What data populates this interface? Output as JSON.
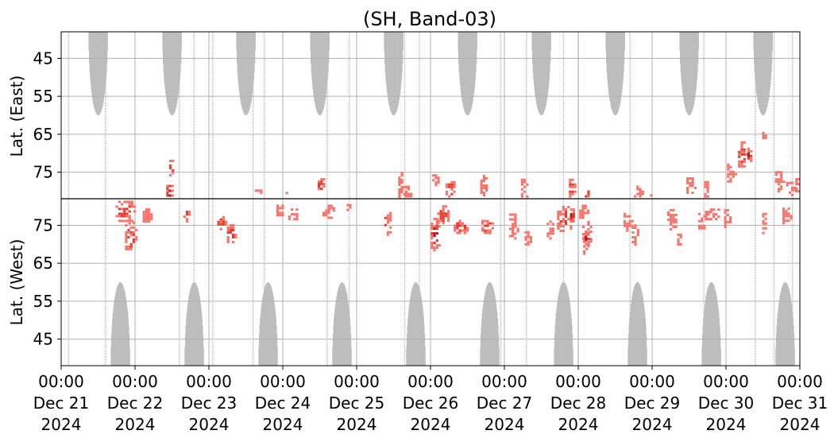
{
  "chart_data": {
    "type": "heatmap",
    "title": "(SH, Band-03)",
    "ylabel_east": "Lat. (East)",
    "ylabel_west": "Lat. (West)",
    "x_range": [
      "2024-12-21T00:00",
      "2024-12-31T00:00"
    ],
    "x_ticks": [
      {
        "time": "00:00",
        "date": "Dec 21",
        "year": "2024"
      },
      {
        "time": "00:00",
        "date": "Dec 22",
        "year": "2024"
      },
      {
        "time": "00:00",
        "date": "Dec 23",
        "year": "2024"
      },
      {
        "time": "00:00",
        "date": "Dec 24",
        "year": "2024"
      },
      {
        "time": "00:00",
        "date": "Dec 25",
        "year": "2024"
      },
      {
        "time": "00:00",
        "date": "Dec 26",
        "year": "2024"
      },
      {
        "time": "00:00",
        "date": "Dec 27",
        "year": "2024"
      },
      {
        "time": "00:00",
        "date": "Dec 28",
        "year": "2024"
      },
      {
        "time": "00:00",
        "date": "Dec 29",
        "year": "2024"
      },
      {
        "time": "00:00",
        "date": "Dec 30",
        "year": "2024"
      },
      {
        "time": "00:00",
        "date": "Dec 31",
        "year": "2024"
      }
    ],
    "y_ticks_east": [
      "45",
      "55",
      "65",
      "75"
    ],
    "y_ticks_west": [
      "75",
      "65",
      "55",
      "45"
    ],
    "east_lat_range": [
      38,
      82
    ],
    "west_lat_range": [
      82,
      38
    ],
    "grid": true,
    "colors": {
      "no_coverage": "#bdbdbd",
      "low": "#f8736a",
      "mid": "#e63c30",
      "high": "#b5161b",
      "divider": "#000000",
      "grid": "#b0b0b0"
    },
    "no_coverage_peak_lat": 60,
    "no_coverage_east_centers_day": [
      0.5,
      1.5,
      2.5,
      3.5,
      4.5,
      5.5,
      6.5,
      7.5,
      8.5,
      9.5
    ],
    "no_coverage_west_centers_day": [
      0.8,
      1.8,
      2.8,
      3.8,
      4.8,
      5.8,
      6.8,
      7.8,
      8.8,
      9.8
    ],
    "no_coverage_halfwidth_day": 0.13,
    "orbit_gap_days": [
      0.1,
      0.6,
      1.6,
      1.8,
      2.05,
      2.6,
      2.75,
      3.6,
      3.9,
      4.65,
      4.85,
      5.95,
      6.3,
      6.8,
      7.0,
      7.7,
      8.7,
      9.4,
      9.65,
      9.9
    ],
    "activity_blobs": [
      {
        "day": 0.85,
        "hemi": "W",
        "lat": 79,
        "wd": 0.25,
        "wl": 4,
        "lvl": 1
      },
      {
        "day": 0.92,
        "hemi": "W",
        "lat": 72,
        "wd": 0.14,
        "wl": 5,
        "lvl": 1
      },
      {
        "day": 1.15,
        "hemi": "W",
        "lat": 78,
        "wd": 0.12,
        "wl": 2,
        "lvl": 0
      },
      {
        "day": 1.45,
        "hemi": "E",
        "lat": 80,
        "wd": 0.08,
        "wl": 3,
        "lvl": 2
      },
      {
        "day": 1.48,
        "hemi": "E",
        "lat": 74,
        "wd": 0.06,
        "wl": 3,
        "lvl": 1
      },
      {
        "day": 1.68,
        "hemi": "W",
        "lat": 78,
        "wd": 0.08,
        "wl": 2,
        "lvl": 1
      },
      {
        "day": 2.15,
        "hemi": "W",
        "lat": 76,
        "wd": 0.1,
        "wl": 2,
        "lvl": 1
      },
      {
        "day": 2.28,
        "hemi": "W",
        "lat": 73,
        "wd": 0.1,
        "wl": 3,
        "lvl": 1
      },
      {
        "day": 2.65,
        "hemi": "E",
        "lat": 81,
        "wd": 0.08,
        "wl": 2,
        "lvl": 0
      },
      {
        "day": 2.95,
        "hemi": "W",
        "lat": 79,
        "wd": 0.1,
        "wl": 2,
        "lvl": 0
      },
      {
        "day": 3.12,
        "hemi": "W",
        "lat": 78,
        "wd": 0.12,
        "wl": 2,
        "lvl": 0
      },
      {
        "day": 3.5,
        "hemi": "E",
        "lat": 78,
        "wd": 0.08,
        "wl": 2,
        "lvl": 1
      },
      {
        "day": 3.6,
        "hemi": "W",
        "lat": 79,
        "wd": 0.15,
        "wl": 2,
        "lvl": 0
      },
      {
        "day": 3.88,
        "hemi": "W",
        "lat": 80,
        "wd": 0.06,
        "wl": 1,
        "lvl": 0
      },
      {
        "day": 3.5,
        "hemi": "E",
        "lat": 82,
        "wd": 0.2,
        "wl": 1,
        "lvl": 0
      },
      {
        "day": 3.6,
        "hemi": "E",
        "lat": 82,
        "wd": 0.05,
        "wl": 1,
        "lvl": 0
      },
      {
        "day": 4.4,
        "hemi": "W",
        "lat": 76,
        "wd": 0.08,
        "wl": 4,
        "lvl": 1
      },
      {
        "day": 3.05,
        "hemi": "E",
        "lat": 81,
        "wd": 0.05,
        "wl": 2,
        "lvl": 0
      },
      {
        "day": 4.6,
        "hemi": "E",
        "lat": 78,
        "wd": 0.1,
        "wl": 4,
        "lvl": 0
      },
      {
        "day": 4.68,
        "hemi": "E",
        "lat": 80,
        "wd": 0.08,
        "wl": 2,
        "lvl": 0
      },
      {
        "day": 5.05,
        "hemi": "W",
        "lat": 73,
        "wd": 0.12,
        "wl": 5,
        "lvl": 2
      },
      {
        "day": 5.15,
        "hemi": "W",
        "lat": 78,
        "wd": 0.15,
        "wl": 3,
        "lvl": 1
      },
      {
        "day": 5.4,
        "hemi": "W",
        "lat": 75,
        "wd": 0.2,
        "wl": 2,
        "lvl": 1
      },
      {
        "day": 5.25,
        "hemi": "E",
        "lat": 79,
        "wd": 0.12,
        "wl": 3,
        "lvl": 1
      },
      {
        "day": 5.05,
        "hemi": "E",
        "lat": 77,
        "wd": 0.08,
        "wl": 2,
        "lvl": 0
      },
      {
        "day": 5.75,
        "hemi": "W",
        "lat": 75,
        "wd": 0.15,
        "wl": 2,
        "lvl": 1
      },
      {
        "day": 5.7,
        "hemi": "E",
        "lat": 78,
        "wd": 0.08,
        "wl": 3,
        "lvl": 0
      },
      {
        "day": 6.1,
        "hemi": "W",
        "lat": 75,
        "wd": 0.1,
        "wl": 4,
        "lvl": 0
      },
      {
        "day": 6.3,
        "hemi": "W",
        "lat": 72,
        "wd": 0.08,
        "wl": 2,
        "lvl": 0
      },
      {
        "day": 6.25,
        "hemi": "E",
        "lat": 79,
        "wd": 0.08,
        "wl": 3,
        "lvl": 0
      },
      {
        "day": 6.8,
        "hemi": "W",
        "lat": 77,
        "wd": 0.2,
        "wl": 4,
        "lvl": 1
      },
      {
        "day": 6.9,
        "hemi": "W",
        "lat": 78,
        "wd": 0.05,
        "wl": 2,
        "lvl": 2
      },
      {
        "day": 6.6,
        "hemi": "W",
        "lat": 74,
        "wd": 0.08,
        "wl": 3,
        "lvl": 0
      },
      {
        "day": 6.9,
        "hemi": "E",
        "lat": 79,
        "wd": 0.08,
        "wl": 3,
        "lvl": 1
      },
      {
        "day": 7.05,
        "hemi": "W",
        "lat": 79,
        "wd": 0.1,
        "wl": 2,
        "lvl": 0
      },
      {
        "day": 7.08,
        "hemi": "W",
        "lat": 71,
        "wd": 0.06,
        "wl": 4,
        "lvl": 0
      },
      {
        "day": 7.1,
        "hemi": "E",
        "lat": 80,
        "wd": 0.05,
        "wl": 2,
        "lvl": 1
      },
      {
        "day": 7.1,
        "hemi": "W",
        "lat": 73,
        "wd": 0.12,
        "wl": 4,
        "lvl": 1
      },
      {
        "day": 7.1,
        "hemi": "W",
        "lat": 72,
        "wd": 0.05,
        "wl": 2,
        "lvl": 2
      },
      {
        "day": 7.65,
        "hemi": "W",
        "lat": 76,
        "wd": 0.1,
        "wl": 3,
        "lvl": 0
      },
      {
        "day": 7.95,
        "hemi": "E",
        "lat": 81,
        "wd": 0.05,
        "wl": 2,
        "lvl": 0
      },
      {
        "day": 7.8,
        "hemi": "E",
        "lat": 80,
        "wd": 0.12,
        "wl": 2,
        "lvl": 0
      },
      {
        "day": 7.75,
        "hemi": "W",
        "lat": 73,
        "wd": 0.08,
        "wl": 3,
        "lvl": 0
      },
      {
        "day": 8.25,
        "hemi": "W",
        "lat": 77,
        "wd": 0.12,
        "wl": 3,
        "lvl": 0
      },
      {
        "day": 8.5,
        "hemi": "E",
        "lat": 78,
        "wd": 0.1,
        "wl": 3,
        "lvl": 0
      },
      {
        "day": 8.35,
        "hemi": "W",
        "lat": 72,
        "wd": 0.05,
        "wl": 2,
        "lvl": 0
      },
      {
        "day": 8.8,
        "hemi": "W",
        "lat": 78,
        "wd": 0.2,
        "wl": 2,
        "lvl": 0
      },
      {
        "day": 8.72,
        "hemi": "E",
        "lat": 79,
        "wd": 0.06,
        "wl": 3,
        "lvl": 0
      },
      {
        "day": 9.2,
        "hemi": "E",
        "lat": 70,
        "wd": 0.1,
        "wl": 4,
        "lvl": 1
      },
      {
        "day": 9.05,
        "hemi": "E",
        "lat": 75,
        "wd": 0.1,
        "wl": 3,
        "lvl": 0
      },
      {
        "day": 9.3,
        "hemi": "E",
        "lat": 70,
        "wd": 0.05,
        "wl": 2,
        "lvl": 2
      },
      {
        "day": 9.7,
        "hemi": "E",
        "lat": 77,
        "wd": 0.1,
        "wl": 3,
        "lvl": 0
      },
      {
        "day": 9.5,
        "hemi": "E",
        "lat": 65,
        "wd": 0.05,
        "wl": 1,
        "lvl": 0
      },
      {
        "day": 9.85,
        "hemi": "E",
        "lat": 79,
        "wd": 0.1,
        "wl": 2,
        "lvl": 0
      },
      {
        "day": 9.95,
        "hemi": "E",
        "lat": 78,
        "wd": 0.05,
        "wl": 2,
        "lvl": 0
      },
      {
        "day": 9.8,
        "hemi": "W",
        "lat": 78,
        "wd": 0.1,
        "wl": 3,
        "lvl": 0
      },
      {
        "day": 9.5,
        "hemi": "W",
        "lat": 76,
        "wd": 0.05,
        "wl": 3,
        "lvl": 0
      },
      {
        "day": 9.0,
        "hemi": "W",
        "lat": 77,
        "wd": 0.08,
        "wl": 3,
        "lvl": 0
      },
      {
        "day": 8.65,
        "hemi": "W",
        "lat": 76,
        "wd": 0.08,
        "wl": 3,
        "lvl": 0
      }
    ]
  }
}
